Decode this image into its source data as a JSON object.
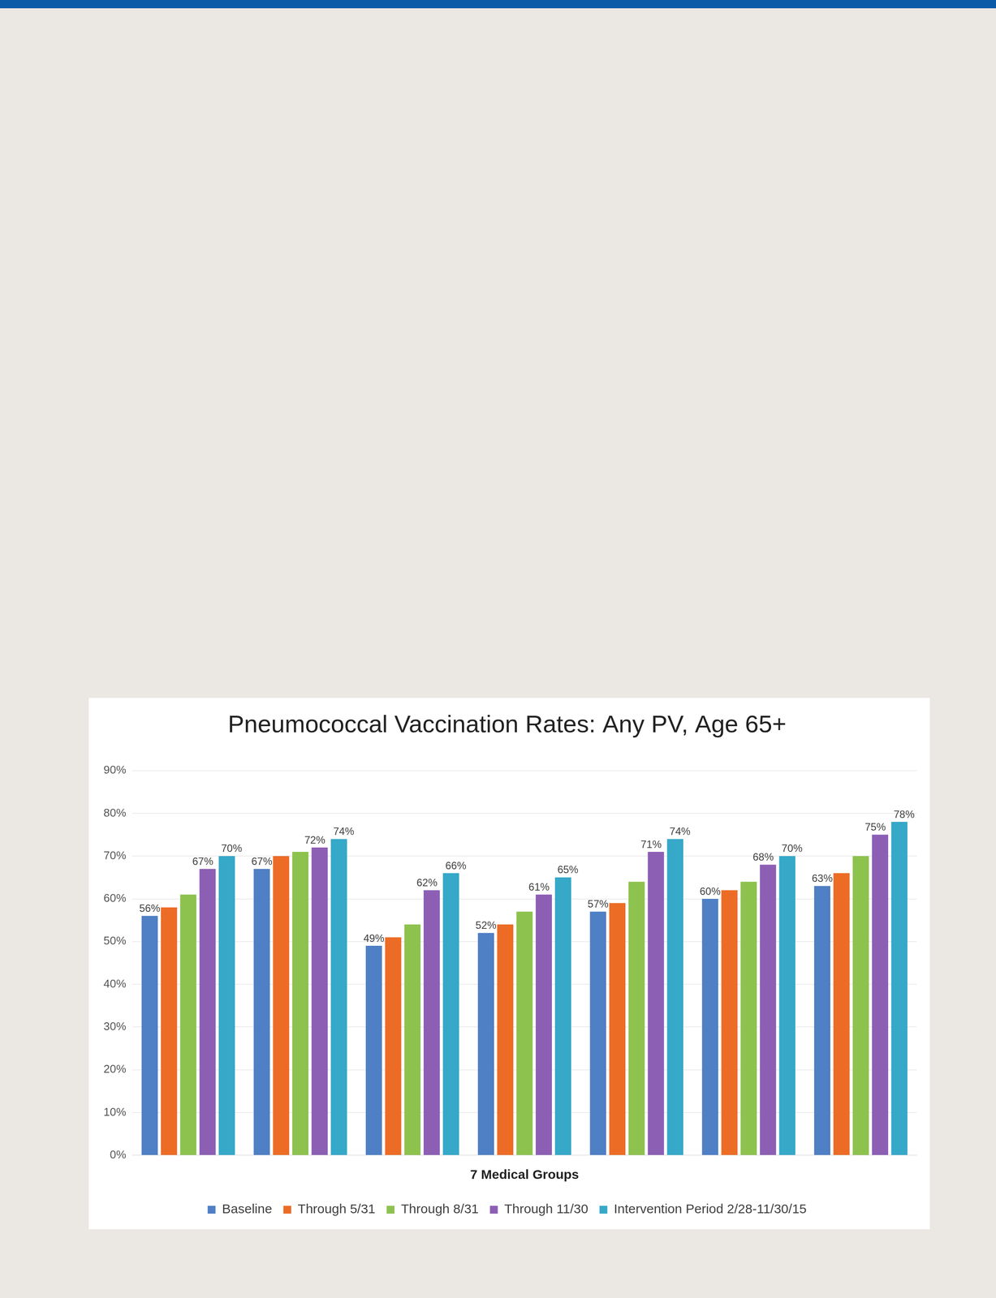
{
  "chart_data": {
    "type": "bar",
    "title": "Pneumococcal Vaccination Rates: Any PV, Age 65+",
    "x_label": "7 Medical Groups",
    "categories": [
      null,
      null,
      null,
      null,
      null,
      null,
      null
    ],
    "series": [
      {
        "name": "Baseline",
        "color": "#4f7fc4",
        "values": [
          56,
          67,
          49,
          52,
          57,
          60,
          63
        ],
        "data_labels": true,
        "value_labels": [
          "56%",
          "67%",
          "49%",
          "52%",
          "57%",
          "60%",
          "63%"
        ]
      },
      {
        "name": "Through 5/31",
        "color": "#ec6c26",
        "values": [
          58,
          70,
          51,
          54,
          59,
          62,
          66
        ]
      },
      {
        "name": "Through 8/31",
        "color": "#8dc24f",
        "values": [
          61,
          71,
          54,
          57,
          64,
          64,
          70
        ]
      },
      {
        "name": "Through 11/30",
        "color": "#8c5fb4",
        "values": [
          67,
          72,
          62,
          61,
          71,
          68,
          75
        ],
        "data_labels": true,
        "value_labels": [
          "67%",
          "72%",
          "62%",
          "61%",
          "71%",
          "68%",
          "75%"
        ]
      },
      {
        "name": "Intervention Period 2/28-11/30/15",
        "color": "#36a8c8",
        "values": [
          70,
          74,
          66,
          65,
          74,
          70,
          78
        ],
        "data_labels": true,
        "value_labels": [
          "70%",
          "74%",
          "66%",
          "65%",
          "74%",
          "70%",
          "78%"
        ]
      }
    ],
    "ylim": [
      0,
      90
    ],
    "yticks": [
      {
        "value": 0,
        "label": "0%"
      },
      {
        "value": 10,
        "label": "10%"
      },
      {
        "value": 20,
        "label": "20%"
      },
      {
        "value": 30,
        "label": "30%"
      },
      {
        "value": 40,
        "label": "40%"
      },
      {
        "value": 50,
        "label": "50%"
      },
      {
        "value": 60,
        "label": "60%"
      },
      {
        "value": 70,
        "label": "70%"
      },
      {
        "value": 80,
        "label": "80%"
      },
      {
        "value": 90,
        "label": "90%"
      }
    ],
    "grid": true,
    "legend": "bottom"
  }
}
